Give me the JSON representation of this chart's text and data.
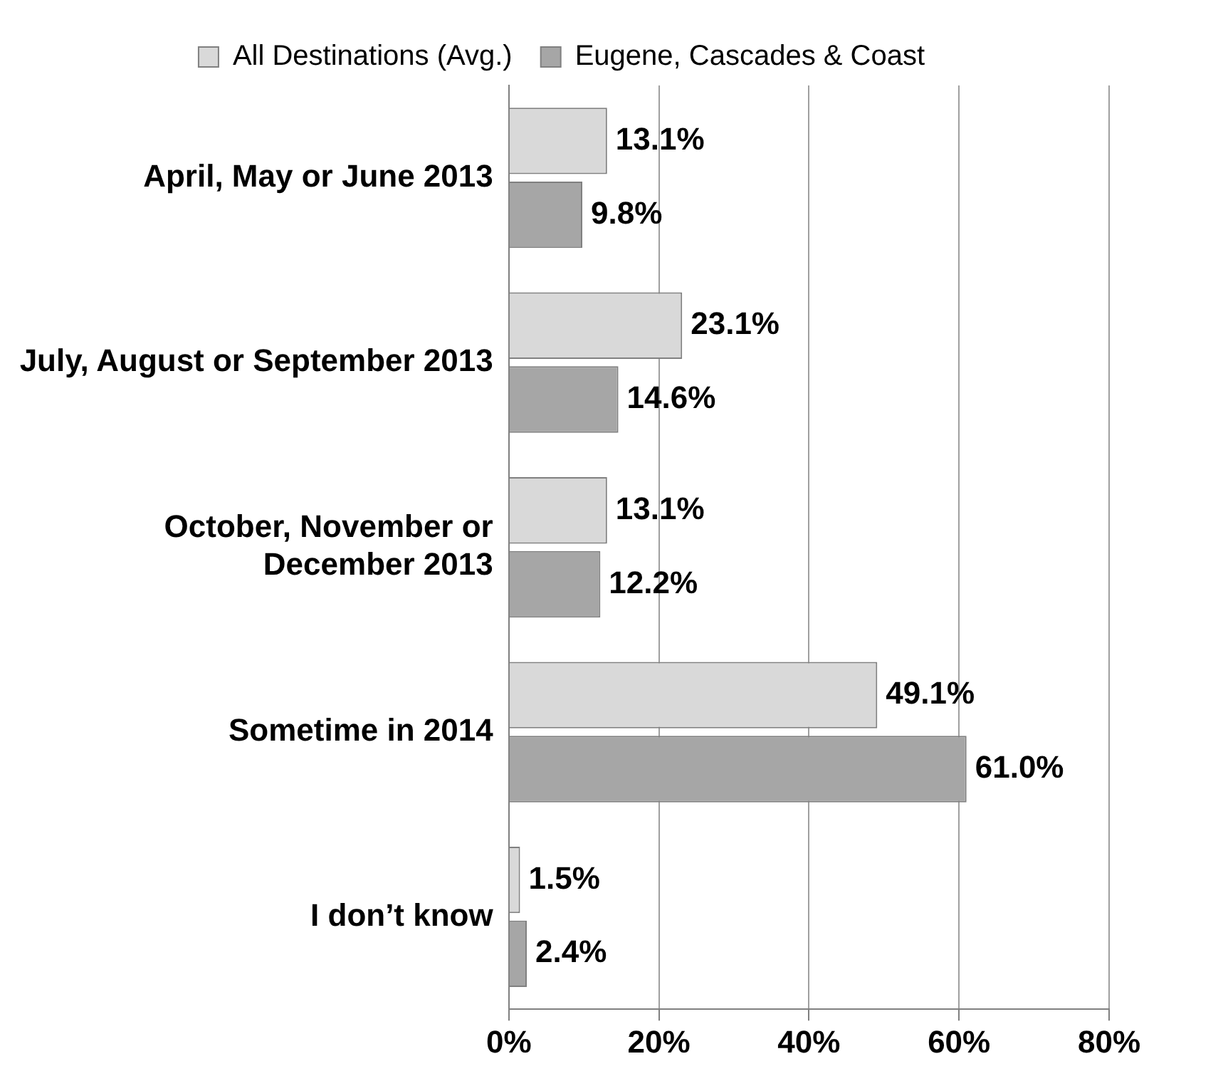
{
  "chart_data": {
    "type": "bar",
    "orientation": "horizontal",
    "categories": [
      "April, May or June 2013",
      "July, August or September 2013",
      "October, November or December 2013",
      "Sometime in 2014",
      "I don’t know"
    ],
    "series": [
      {
        "name": "All Destinations (Avg.)",
        "color": "#d9d9d9",
        "values": [
          13.1,
          23.1,
          13.1,
          49.1,
          1.5
        ],
        "value_labels": [
          "13.1%",
          "23.1%",
          "13.1%",
          "49.1%",
          "1.5%"
        ]
      },
      {
        "name": "Eugene, Cascades & Coast",
        "color": "#a6a6a6",
        "values": [
          9.8,
          14.6,
          12.2,
          61.0,
          2.4
        ],
        "value_labels": [
          "9.8%",
          "14.6%",
          "12.2%",
          "61.0%",
          "2.4%"
        ]
      }
    ],
    "xlim": [
      0,
      80
    ],
    "xticks": [
      {
        "value": 0,
        "label": "0%"
      },
      {
        "value": 20,
        "label": "20%"
      },
      {
        "value": 40,
        "label": "40%"
      },
      {
        "value": 60,
        "label": "60%"
      },
      {
        "value": 80,
        "label": "80%"
      }
    ],
    "grid": "x",
    "legend": "top"
  }
}
